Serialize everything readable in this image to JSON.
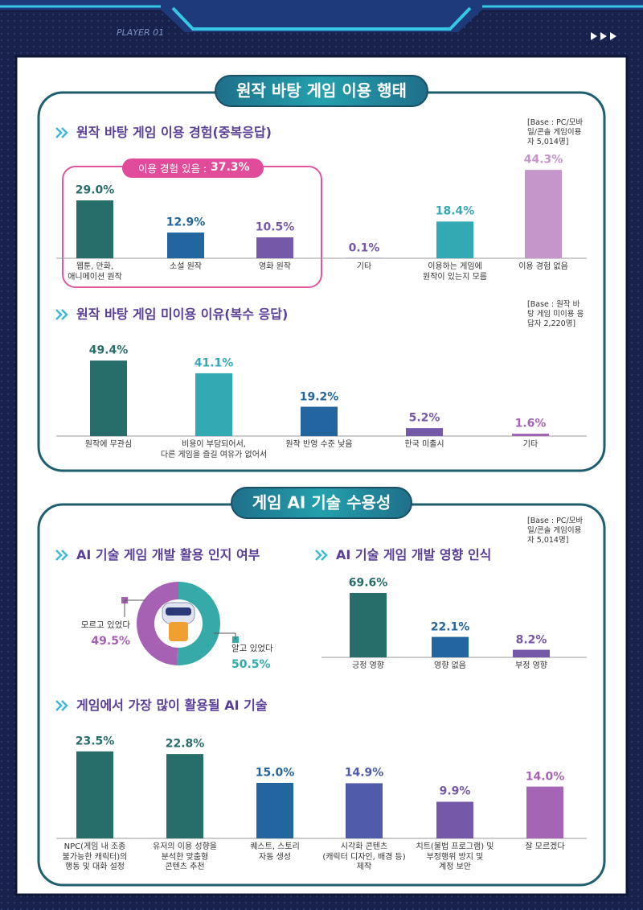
{
  "header": {
    "player": "PLAYER 01"
  },
  "sections": [
    {
      "title": "원작 바탕 게임 이용 행태"
    },
    {
      "title": "게임 AI 기술 수용성",
      "base": "[Base : PC/모바일/콘솔 게임이용자 5,014명]"
    }
  ],
  "chart_data": [
    {
      "type": "bar",
      "title": "원작 바탕 게임 이용 경험(중복응답)",
      "base": "[Base : PC/모바일/콘솔 게임이용자 5,014명]",
      "annotation": {
        "text": "이용 경험 있음 :",
        "value_label": "37.3%"
      },
      "categories": [
        "웹툰, 만화,\n애니메이션 원작",
        "소설 원작",
        "영화 원작",
        "기타",
        "이용하는 게임에\n원작이 있는지 모름",
        "이용 경험 없음"
      ],
      "values": [
        29.0,
        12.9,
        10.5,
        0.1,
        18.4,
        44.3
      ],
      "value_labels": [
        "29.0%",
        "12.9%",
        "10.5%",
        "0.1%",
        "18.4%",
        "44.3%"
      ],
      "colors": [
        "#276d69",
        "#23659e",
        "#7658a8",
        "#7658a8",
        "#33a9b4",
        "#c596c9"
      ]
    },
    {
      "type": "bar",
      "title": "원작 바탕 게임 미이용 이유(복수 응답)",
      "base": "[Base : 원작 바탕 게임 미이용 응답자 2,220명]",
      "categories": [
        "원작에 무관심",
        "비용이 부담되어서,\n다른 게임을 즐길 여유가 없어서",
        "원작 반영 수준 낮음",
        "한국 미출시",
        "기타"
      ],
      "values": [
        49.4,
        41.1,
        19.2,
        5.2,
        1.6
      ],
      "value_labels": [
        "49.4%",
        "41.1%",
        "19.2%",
        "5.2%",
        "1.6%"
      ],
      "colors": [
        "#276d69",
        "#33a9b4",
        "#23659e",
        "#7658a8",
        "#a565b5"
      ]
    },
    {
      "type": "pie",
      "title": "AI 기술 게임 개발 활용 인지 여부",
      "categories": [
        "모르고 있었다",
        "알고 있었다"
      ],
      "values": [
        49.5,
        50.5
      ],
      "value_labels": [
        "49.5%",
        "50.5%"
      ],
      "colors": [
        "#a660b4",
        "#36a9a9"
      ]
    },
    {
      "type": "bar",
      "title": "AI 기술 게임 개발 영향 인식",
      "categories": [
        "긍정 영향",
        "영향 없음",
        "부정 영향"
      ],
      "values": [
        69.6,
        22.1,
        8.2
      ],
      "value_labels": [
        "69.6%",
        "22.1%",
        "8.2%"
      ],
      "colors": [
        "#276d69",
        "#23659e",
        "#7658a8"
      ]
    },
    {
      "type": "bar",
      "title": "게임에서 가장 많이 활용될 AI 기술",
      "categories": [
        "NPC(게임 내 조종\n불가능한 캐릭터)의\n행동 및 대화 설정",
        "유저의 이용 성향을\n분석한 맞춤형\n콘텐츠 추천",
        "퀘스트, 스토리\n자동 생성",
        "시각화 콘텐츠\n(캐릭터 디자인, 배경 등)\n제작",
        "치트(불법 프로그램) 및\n부정행위 방지 및\n계정 보안",
        "잘 모르겠다"
      ],
      "values": [
        23.5,
        22.8,
        15.0,
        14.9,
        9.9,
        14.0
      ],
      "value_labels": [
        "23.5%",
        "22.8%",
        "15.0%",
        "14.9%",
        "9.9%",
        "14.0%"
      ],
      "colors": [
        "#276d69",
        "#276d69",
        "#23659e",
        "#4f5aa8",
        "#7658a8",
        "#a565b5"
      ]
    }
  ]
}
